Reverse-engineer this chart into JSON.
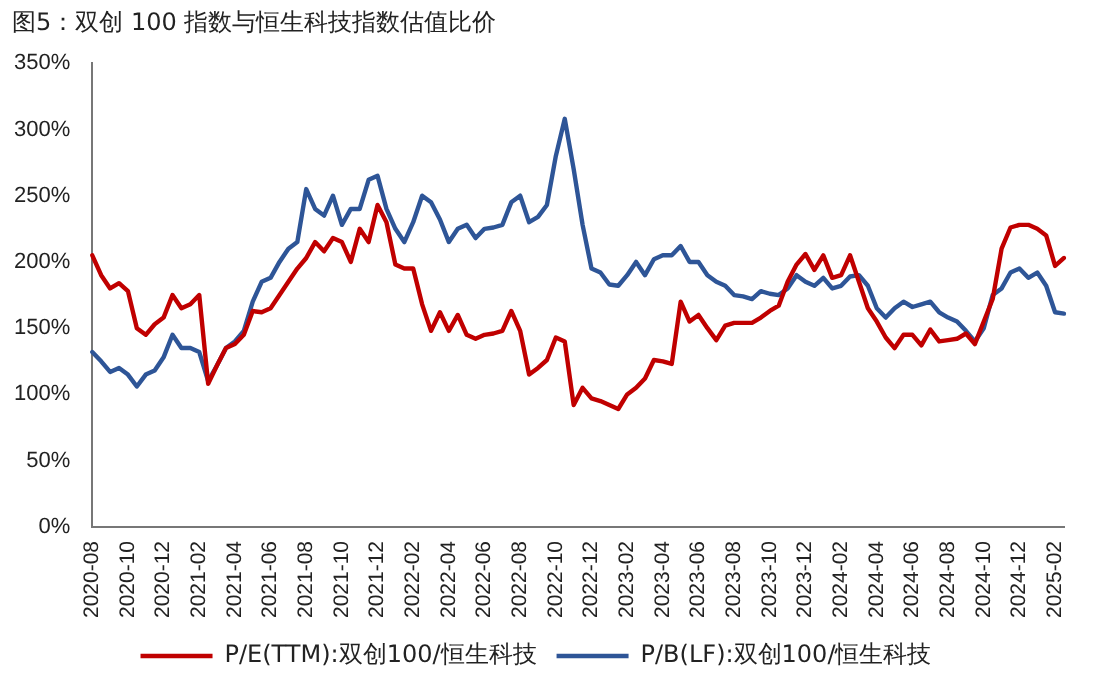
{
  "chart_data": {
    "type": "line",
    "title": "图5：双创 100 指数与恒生科技指数估值比价",
    "categories": [
      "2020-08",
      null,
      null,
      null,
      "2020-10",
      null,
      null,
      null,
      "2020-12",
      null,
      null,
      null,
      "2021-02",
      null,
      null,
      null,
      "2021-04",
      null,
      null,
      null,
      "2021-06",
      null,
      null,
      null,
      "2021-08",
      null,
      null,
      null,
      "2021-10",
      null,
      null,
      null,
      "2021-12",
      null,
      null,
      null,
      "2022-02",
      null,
      null,
      null,
      "2022-04",
      null,
      null,
      null,
      "2022-06",
      null,
      null,
      null,
      "2022-08",
      null,
      null,
      null,
      "2022-10",
      null,
      null,
      null,
      "2022-12",
      null,
      null,
      null,
      "2023-02",
      null,
      null,
      null,
      "2023-04",
      null,
      null,
      null,
      "2023-06",
      null,
      null,
      null,
      "2023-08",
      null,
      null,
      null,
      "2023-10",
      null,
      null,
      null,
      "2023-12",
      null,
      null,
      null,
      "2024-02",
      null,
      null,
      null,
      "2024-04",
      null,
      null,
      null,
      "2024-06",
      null,
      null,
      null,
      "2024-08",
      null,
      null,
      null,
      "2024-10",
      null,
      null,
      null,
      "2024-12",
      null,
      null,
      null,
      "2025-02",
      null
    ],
    "series": [
      {
        "name": "P/E(TTM):双创100/恒生科技",
        "color": "#c00000",
        "values": [
          205,
          190,
          180,
          184,
          178,
          150,
          145,
          153,
          158,
          175,
          165,
          168,
          175,
          108,
          122,
          135,
          138,
          145,
          163,
          162,
          165,
          175,
          185,
          195,
          203,
          215,
          208,
          218,
          215,
          200,
          225,
          215,
          243,
          230,
          198,
          195,
          195,
          168,
          148,
          162,
          148,
          160,
          145,
          142,
          145,
          146,
          148,
          163,
          148,
          115,
          120,
          126,
          143,
          140,
          92,
          105,
          97,
          95,
          92,
          89,
          100,
          105,
          112,
          126,
          125,
          123,
          170,
          155,
          160,
          150,
          141,
          152,
          154,
          154,
          154,
          158,
          163,
          167,
          185,
          198,
          206,
          194,
          205,
          188,
          190,
          205,
          185,
          165,
          155,
          143,
          135,
          145,
          145,
          137,
          149,
          140,
          141,
          142,
          146,
          138,
          155,
          172,
          210,
          226,
          228,
          228,
          225,
          220,
          197,
          203
        ]
      },
      {
        "name": "P/B(LF):双创100/恒生科技",
        "color": "#2e5597",
        "values": [
          132,
          125,
          117,
          120,
          115,
          106,
          115,
          118,
          128,
          145,
          135,
          135,
          132,
          110,
          122,
          135,
          140,
          148,
          170,
          185,
          188,
          200,
          210,
          215,
          255,
          240,
          235,
          250,
          228,
          240,
          240,
          262,
          265,
          240,
          225,
          215,
          230,
          250,
          245,
          232,
          215,
          225,
          228,
          218,
          225,
          226,
          228,
          245,
          250,
          230,
          234,
          243,
          280,
          308,
          270,
          228,
          195,
          192,
          183,
          182,
          190,
          200,
          190,
          202,
          205,
          205,
          212,
          200,
          200,
          190,
          185,
          182,
          175,
          174,
          172,
          178,
          176,
          175,
          180,
          190,
          185,
          182,
          188,
          180,
          182,
          189,
          190,
          182,
          165,
          158,
          165,
          170,
          166,
          168,
          170,
          162,
          158,
          155,
          148,
          140,
          150,
          175,
          180,
          192,
          195,
          188,
          192,
          182,
          162,
          161
        ]
      }
    ],
    "ylim": [
      0,
      350
    ],
    "yticks": [
      {
        "value": 0,
        "label": "0%"
      },
      {
        "value": 50,
        "label": "50%"
      },
      {
        "value": 100,
        "label": "100%"
      },
      {
        "value": 150,
        "label": "150%"
      },
      {
        "value": 200,
        "label": "200%"
      },
      {
        "value": 250,
        "label": "250%"
      },
      {
        "value": 300,
        "label": "300%"
      },
      {
        "value": 350,
        "label": "350%"
      }
    ],
    "grid": false,
    "legend": "bottom",
    "marker": "none",
    "line_style": "solid"
  }
}
